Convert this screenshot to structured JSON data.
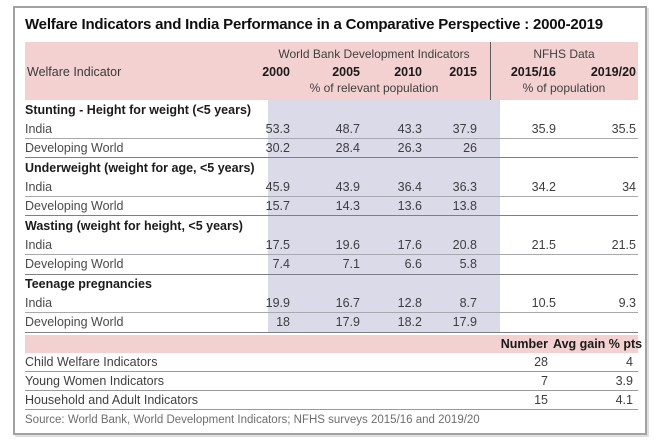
{
  "chart_data": {
    "type": "table",
    "title": "Welfare Indicators and India Performance in a Comparative Perspective : 2000-2019",
    "header": {
      "indicator_label": "Welfare Indicator",
      "wb_group": "World Bank Development Indicators",
      "wb_years": [
        "2000",
        "2005",
        "2010",
        "2015"
      ],
      "wb_unit": "% of relevant population",
      "nfhs_group": "NFHS Data",
      "nfhs_years": [
        "2015/16",
        "2019/20"
      ],
      "nfhs_unit": "% of population"
    },
    "sections": [
      {
        "label": "Stunting - Height for weight (<5 years)",
        "rows": [
          {
            "label": "India",
            "wb": [
              "53.3",
              "48.7",
              "43.3",
              "37.9"
            ],
            "nfhs": [
              "35.9",
              "35.5"
            ]
          },
          {
            "label": "Developing World",
            "wb": [
              "30.2",
              "28.4",
              "26.3",
              "26"
            ],
            "nfhs": [
              "",
              ""
            ]
          }
        ]
      },
      {
        "label": "Underweight (weight for age, <5 years)",
        "rows": [
          {
            "label": "India",
            "wb": [
              "45.9",
              "43.9",
              "36.4",
              "36.3"
            ],
            "nfhs": [
              "34.2",
              "34"
            ]
          },
          {
            "label": "Developing World",
            "wb": [
              "15.7",
              "14.3",
              "13.6",
              "13.8"
            ],
            "nfhs": [
              "",
              ""
            ]
          }
        ]
      },
      {
        "label": "Wasting (weight for height, <5 years)",
        "rows": [
          {
            "label": "India",
            "wb": [
              "17.5",
              "19.6",
              "17.6",
              "20.8"
            ],
            "nfhs": [
              "21.5",
              "21.5"
            ]
          },
          {
            "label": "Developing World",
            "wb": [
              "7.4",
              "7.1",
              "6.6",
              "5.8"
            ],
            "nfhs": [
              "",
              ""
            ]
          }
        ]
      },
      {
        "label": "Teenage pregnancies",
        "rows": [
          {
            "label": "India",
            "wb": [
              "19.9",
              "16.7",
              "12.8",
              "8.7"
            ],
            "nfhs": [
              "10.5",
              "9.3"
            ]
          },
          {
            "label": "Developing World",
            "wb": [
              "18",
              "17.9",
              "18.2",
              "17.9"
            ],
            "nfhs": [
              "",
              ""
            ]
          }
        ]
      }
    ],
    "summary": {
      "number_label": "Number",
      "avg_gain_label": "Avg gain % pts",
      "rows": [
        {
          "label": "Child Welfare Indicators",
          "number": "28",
          "avg_gain": "4"
        },
        {
          "label": "Young Women Indicators",
          "number": "7",
          "avg_gain": "3.9"
        },
        {
          "label": "Household and Adult Indicators",
          "number": "15",
          "avg_gain": "4.1"
        }
      ]
    },
    "source": "Source: World Bank, World Development Indicators; NFHS surveys 2015/16 and 2019/20",
    "colors": {
      "header_pink": "#f3d1d1",
      "wb_column_highlight": "#dbdae8"
    }
  }
}
